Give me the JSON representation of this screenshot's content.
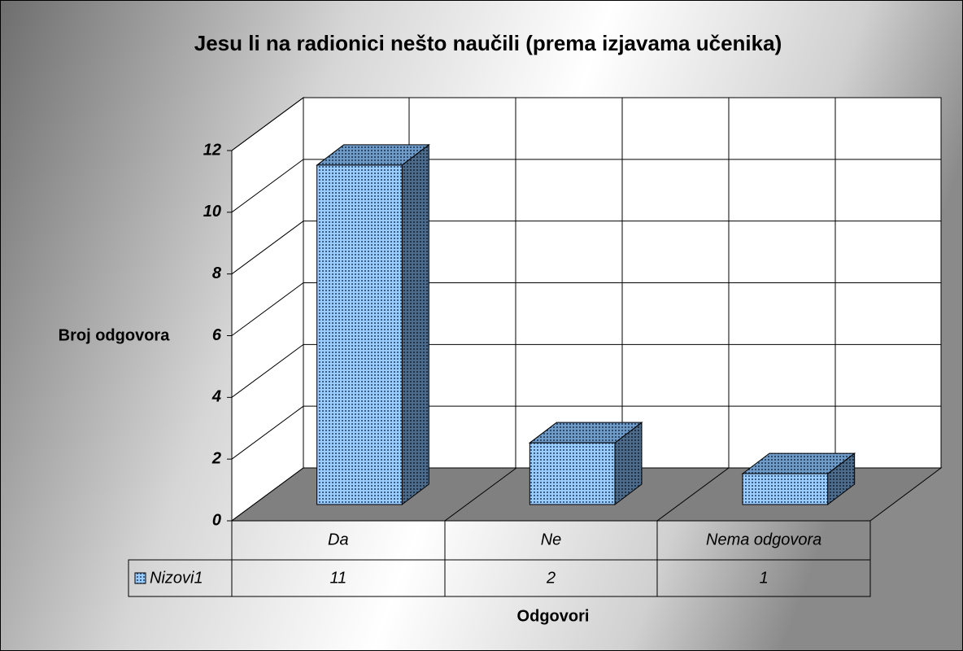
{
  "chart_data": {
    "type": "bar3d",
    "title": "Jesu li na radionici nešto naučili (prema izjavama učenika)",
    "y_label": "Broj odgovora",
    "x_label": "Odgovori",
    "categories": [
      "Da",
      "Ne",
      "Nema odgovora"
    ],
    "series": [
      {
        "name": "Nizovi1",
        "color": "#99ccff",
        "values": [
          11,
          2,
          1
        ]
      }
    ],
    "ylim": [
      0,
      12
    ],
    "yticks": [
      0,
      2,
      4,
      6,
      8,
      10,
      12
    ],
    "grid": true,
    "data_table": true
  }
}
